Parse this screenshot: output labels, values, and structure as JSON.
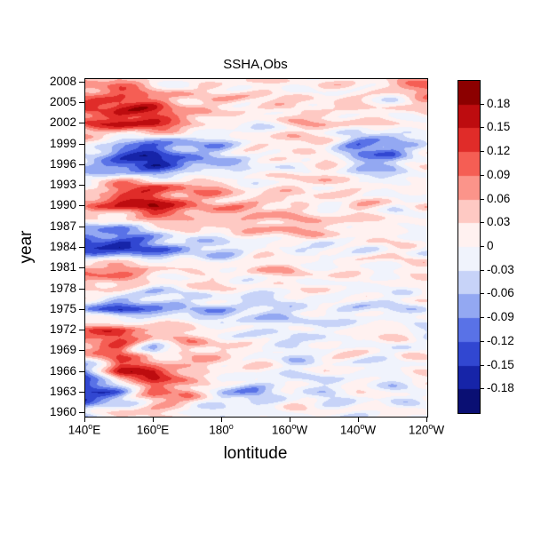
{
  "chart_data": {
    "type": "heatmap",
    "title": "SSHA,Obs",
    "xlabel": "lontitude",
    "ylabel": "year",
    "x_ticks": [
      {
        "value": 140,
        "label": "140°E"
      },
      {
        "value": 160,
        "label": "160°E"
      },
      {
        "value": 180,
        "label": "180°"
      },
      {
        "value": 200,
        "label": "160°W"
      },
      {
        "value": 220,
        "label": "140°W"
      },
      {
        "value": 240,
        "label": "120°W"
      }
    ],
    "y_ticks": [
      1960,
      1963,
      1966,
      1969,
      1972,
      1975,
      1978,
      1981,
      1984,
      1987,
      1990,
      1993,
      1996,
      1999,
      2002,
      2005,
      2008
    ],
    "xlim": [
      140,
      240
    ],
    "ylim": [
      1959.5,
      2008.5
    ],
    "grid_on": false,
    "colorbar": {
      "position": "right",
      "levels": [
        -0.18,
        -0.15,
        -0.12,
        -0.09,
        -0.06,
        -0.03,
        0,
        0.03,
        0.06,
        0.09,
        0.12,
        0.15,
        0.18
      ],
      "zero_label": "0"
    },
    "colormap": {
      "name": "blue-white-red",
      "negative_stops": [
        {
          "t": 0.0,
          "c": "#ffffff"
        },
        {
          "t": 0.15,
          "c": "#e1e8fa"
        },
        {
          "t": 0.35,
          "c": "#a0b4f5"
        },
        {
          "t": 0.55,
          "c": "#556ee6"
        },
        {
          "t": 0.75,
          "c": "#2337c8"
        },
        {
          "t": 0.9,
          "c": "#0f1996"
        },
        {
          "t": 1.0,
          "c": "#0a0f73"
        }
      ],
      "positive_stops": [
        {
          "t": 0.0,
          "c": "#ffffff"
        },
        {
          "t": 0.15,
          "c": "#ffe4e1"
        },
        {
          "t": 0.35,
          "c": "#fca096"
        },
        {
          "t": 0.55,
          "c": "#f55a50"
        },
        {
          "t": 0.75,
          "c": "#d71919"
        },
        {
          "t": 0.9,
          "c": "#af050a"
        },
        {
          "t": 1.0,
          "c": "#8c0000"
        }
      ]
    },
    "grid": {
      "lon": [
        140,
        150,
        160,
        170,
        180,
        190,
        200,
        210,
        220,
        230,
        240
      ],
      "years": [
        1960,
        1963,
        1966,
        1969,
        1972,
        1975,
        1978,
        1981,
        1984,
        1987,
        1990,
        1993,
        1996,
        1999,
        2002,
        2005,
        2008
      ],
      "values": [
        [
          -0.05,
          0.04,
          0.03,
          0.0,
          -0.03,
          0.0,
          0.02,
          0.0,
          -0.02,
          0.01,
          0.0
        ],
        [
          -0.18,
          -0.1,
          0.08,
          0.1,
          -0.05,
          -0.08,
          0.0,
          -0.05,
          0.02,
          -0.03,
          0.0
        ],
        [
          -0.1,
          0.15,
          0.17,
          0.05,
          0.0,
          0.04,
          -0.05,
          0.02,
          -0.03,
          0.0,
          0.02
        ],
        [
          0.08,
          0.1,
          -0.05,
          0.04,
          0.06,
          0.0,
          -0.03,
          0.0,
          0.02,
          -0.02,
          0.01
        ],
        [
          0.1,
          0.13,
          0.08,
          0.05,
          0.0,
          -0.04,
          0.0,
          -0.05,
          0.02,
          0.03,
          -0.03
        ],
        [
          -0.08,
          -0.13,
          -0.1,
          -0.05,
          -0.08,
          -0.03,
          -0.06,
          0.0,
          -0.03,
          -0.05,
          0.01
        ],
        [
          0.05,
          0.04,
          -0.04,
          0.01,
          0.03,
          -0.02,
          0.0,
          0.03,
          -0.02,
          0.01,
          0.0
        ],
        [
          0.09,
          0.11,
          0.05,
          0.03,
          0.0,
          0.04,
          0.05,
          0.0,
          0.02,
          0.0,
          0.03
        ],
        [
          -0.15,
          -0.18,
          -0.12,
          -0.08,
          -0.05,
          -0.02,
          0.0,
          -0.04,
          0.0,
          0.02,
          -0.01
        ],
        [
          -0.06,
          -0.08,
          0.0,
          0.05,
          0.03,
          0.05,
          0.08,
          0.05,
          0.03,
          0.0,
          0.01
        ],
        [
          0.08,
          0.15,
          0.17,
          0.1,
          0.05,
          0.08,
          0.02,
          0.0,
          0.04,
          0.0,
          0.02
        ],
        [
          0.0,
          0.12,
          0.1,
          0.08,
          0.05,
          0.0,
          0.03,
          0.05,
          0.0,
          0.02,
          -0.02
        ],
        [
          -0.05,
          -0.15,
          -0.18,
          -0.1,
          -0.05,
          -0.03,
          0.0,
          0.03,
          -0.05,
          -0.08,
          0.03
        ],
        [
          0.02,
          -0.1,
          -0.12,
          -0.08,
          -0.05,
          0.02,
          0.05,
          0.0,
          -0.1,
          -0.12,
          0.0
        ],
        [
          0.08,
          0.17,
          0.15,
          0.08,
          0.0,
          -0.02,
          0.03,
          0.05,
          0.02,
          0.03,
          0.0
        ],
        [
          0.12,
          0.15,
          0.12,
          0.06,
          0.03,
          0.05,
          0.02,
          0.03,
          0.02,
          0.0,
          0.05
        ],
        [
          0.06,
          0.08,
          0.02,
          0.0,
          0.03,
          0.02,
          0.0,
          0.02,
          0.0,
          0.05,
          0.1
        ]
      ]
    }
  }
}
